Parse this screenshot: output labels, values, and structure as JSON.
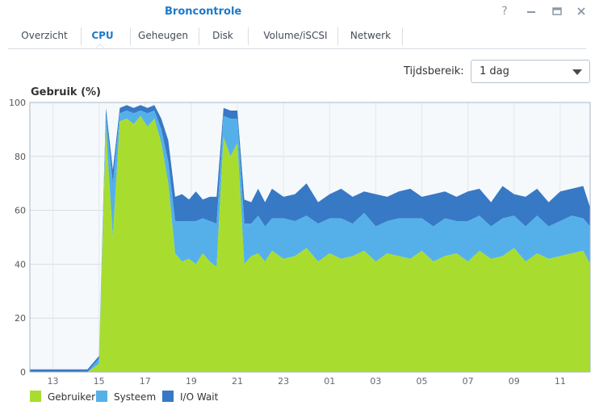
{
  "window": {
    "title": "Broncontrole"
  },
  "tabs": [
    {
      "label": "Overzicht"
    },
    {
      "label": "CPU"
    },
    {
      "label": "Geheugen"
    },
    {
      "label": "Disk"
    },
    {
      "label": "Volume/iSCSI"
    },
    {
      "label": "Netwerk"
    }
  ],
  "active_tab": "CPU",
  "time_range": {
    "label": "Tijdsbereik:",
    "value": "1 dag"
  },
  "icons": [
    "help-icon",
    "minimize-icon",
    "maximize-icon",
    "close-icon",
    "dropdown-arrow-icon"
  ],
  "colors": {
    "accent": "#1d7ac8",
    "gebruiker": "#a8dd2f",
    "systeem": "#55b0ea",
    "io_wait": "#3779c5"
  },
  "chart_data": {
    "type": "area",
    "title": "Gebruik (%)",
    "stacked": true,
    "ylim": [
      0,
      100
    ],
    "yticks": [
      0,
      20,
      40,
      60,
      80,
      100
    ],
    "xticks": [
      "13",
      "15",
      "17",
      "19",
      "21",
      "23",
      "01",
      "03",
      "05",
      "07",
      "09",
      "11"
    ],
    "grid": true,
    "legend_position": "bottom-left",
    "x": [
      12,
      12.5,
      13,
      13.5,
      14,
      14.5,
      15,
      15.3,
      15.6,
      15.9,
      16.2,
      16.5,
      16.8,
      17.1,
      17.4,
      17.7,
      18,
      18.3,
      18.6,
      18.9,
      19.2,
      19.5,
      19.8,
      20.1,
      20.4,
      20.7,
      21,
      21.3,
      21.6,
      21.9,
      22.2,
      22.5,
      23,
      23.5,
      24,
      24.5,
      25,
      25.5,
      26,
      26.5,
      27,
      27.5,
      28,
      28.5,
      29,
      29.5,
      30,
      30.5,
      31,
      31.5,
      32,
      32.5,
      33,
      33.5,
      34,
      34.5,
      35,
      35.5,
      36,
      36.3
    ],
    "series": [
      {
        "name": "Gebruiker",
        "color": "#a8dd2f",
        "values": [
          0,
          0,
          0,
          0,
          0,
          0,
          3,
          90,
          50,
          93,
          94,
          92,
          95,
          91,
          94,
          85,
          70,
          44,
          41,
          42,
          40,
          44,
          41,
          39,
          87,
          80,
          85,
          40,
          43,
          44,
          41,
          45,
          42,
          43,
          46,
          41,
          44,
          42,
          43,
          45,
          41,
          44,
          43,
          42,
          45,
          41,
          43,
          44,
          41,
          45,
          42,
          43,
          46,
          41,
          44,
          42,
          43,
          44,
          45,
          40
        ]
      },
      {
        "name": "Systeem",
        "color": "#55b0ea",
        "values": [
          0,
          0,
          0,
          0,
          0,
          0,
          2,
          5,
          20,
          3,
          3,
          4,
          2,
          5,
          3,
          5,
          8,
          12,
          15,
          14,
          16,
          13,
          15,
          16,
          8,
          14,
          9,
          15,
          12,
          14,
          13,
          12,
          15,
          13,
          12,
          14,
          13,
          15,
          12,
          14,
          13,
          12,
          14,
          15,
          12,
          13,
          14,
          12,
          15,
          13,
          12,
          14,
          12,
          13,
          14,
          12,
          13,
          14,
          12,
          14
        ]
      },
      {
        "name": "I/O Wait",
        "color": "#3779c5",
        "values": [
          1,
          1,
          1,
          1,
          1,
          1,
          1,
          3,
          5,
          2,
          2,
          2,
          2,
          2,
          2,
          4,
          8,
          9,
          10,
          8,
          11,
          7,
          9,
          10,
          3,
          3,
          3,
          9,
          8,
          10,
          9,
          11,
          8,
          10,
          12,
          8,
          9,
          11,
          10,
          8,
          12,
          9,
          10,
          11,
          8,
          12,
          10,
          9,
          11,
          10,
          9,
          12,
          8,
          11,
          10,
          9,
          11,
          10,
          12,
          7
        ]
      }
    ]
  }
}
